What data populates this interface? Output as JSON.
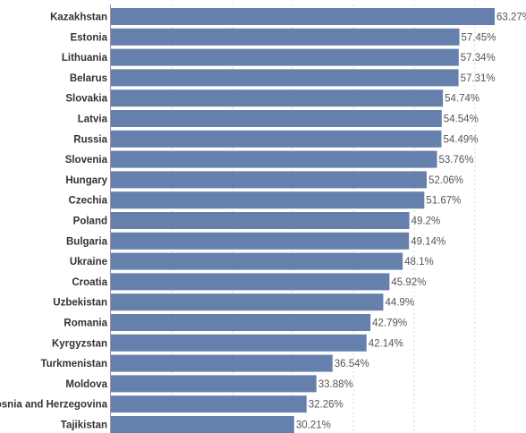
{
  "chart_data": {
    "type": "bar",
    "orientation": "horizontal",
    "categories": [
      "Kazakhstan",
      "Estonia",
      "Lithuania",
      "Belarus",
      "Slovakia",
      "Latvia",
      "Russia",
      "Slovenia",
      "Hungary",
      "Czechia",
      "Poland",
      "Bulgaria",
      "Ukraine",
      "Croatia",
      "Uzbekistan",
      "Romania",
      "Kyrgyzstan",
      "Turkmenistan",
      "Moldova",
      "Bosnia and Herzegovina",
      "Tajikistan"
    ],
    "values": [
      63.27,
      57.45,
      57.34,
      57.31,
      54.74,
      54.54,
      54.49,
      53.76,
      52.06,
      51.67,
      49.2,
      49.14,
      48.1,
      45.92,
      44.9,
      42.79,
      42.14,
      36.54,
      33.88,
      32.26,
      30.21
    ],
    "value_labels": [
      "63.27%",
      "57.45%",
      "57.34%",
      "57.31%",
      "54.74%",
      "54.54%",
      "54.49%",
      "53.76%",
      "52.06%",
      "51.67%",
      "49.2%",
      "49.14%",
      "48.1%",
      "45.92%",
      "44.9%",
      "42.79%",
      "42.14%",
      "36.54%",
      "33.88%",
      "32.26%",
      "30.21%"
    ],
    "xlim": [
      0,
      63.27
    ],
    "grid": true,
    "bar_color": "#6680ad"
  }
}
